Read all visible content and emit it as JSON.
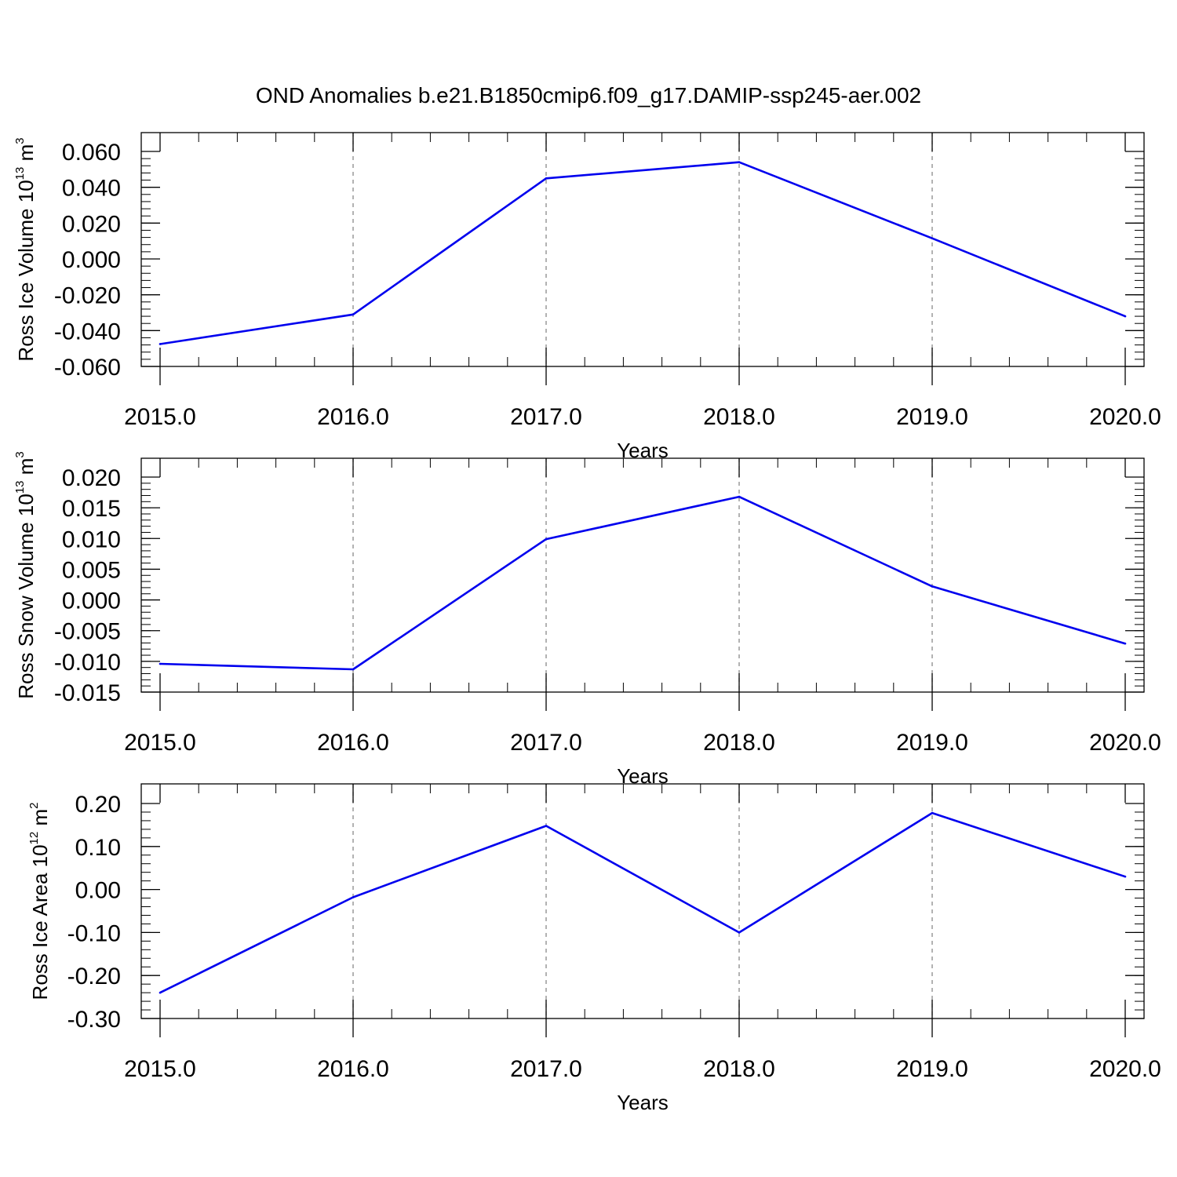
{
  "title": "OND Anomalies b.e21.B1850cmip6.f09_g17.DAMIP-ssp245-aer.002",
  "line_color": "#0000ee",
  "chart_data": [
    {
      "type": "line",
      "ylabel": {
        "text": "Ross Ice Volume 10",
        "sup": "13",
        "unit": " m",
        "unit_sup": "3"
      },
      "xlabel": "Years",
      "x": [
        2015,
        2016,
        2017,
        2018,
        2019,
        2020
      ],
      "values": [
        -0.0475,
        -0.031,
        0.045,
        0.054,
        0.0115,
        -0.032
      ],
      "xlim": [
        2015,
        2020
      ],
      "ylim": [
        -0.06,
        0.06
      ],
      "xticks": [
        "2015.0",
        "2016.0",
        "2017.0",
        "2018.0",
        "2019.0",
        "2020.0"
      ],
      "xtick_values": [
        2015,
        2016,
        2017,
        2018,
        2019,
        2020
      ],
      "yticks": [
        "0.060",
        "0.040",
        "0.020",
        "0.000",
        "-0.020",
        "-0.040",
        "-0.060"
      ],
      "ytick_values": [
        0.06,
        0.04,
        0.02,
        0,
        -0.02,
        -0.04,
        -0.06
      ],
      "grid": "vertical dashed at major x ticks"
    },
    {
      "type": "line",
      "ylabel": {
        "text": "Ross Snow Volume 10",
        "sup": "13",
        "unit": " m",
        "unit_sup": "3"
      },
      "xlabel": "Years",
      "x": [
        2015,
        2016,
        2017,
        2018,
        2019,
        2020
      ],
      "values": [
        -0.0104,
        -0.0113,
        0.0099,
        0.0168,
        0.0022,
        -0.0071
      ],
      "xlim": [
        2015,
        2020
      ],
      "ylim": [
        -0.015,
        0.02
      ],
      "xticks": [
        "2015.0",
        "2016.0",
        "2017.0",
        "2018.0",
        "2019.0",
        "2020.0"
      ],
      "xtick_values": [
        2015,
        2016,
        2017,
        2018,
        2019,
        2020
      ],
      "yticks": [
        "0.020",
        "0.015",
        "0.010",
        "0.005",
        "0.000",
        "-0.005",
        "-0.010",
        "-0.015"
      ],
      "ytick_values": [
        0.02,
        0.015,
        0.01,
        0.005,
        0,
        -0.005,
        -0.01,
        -0.015
      ],
      "grid": "vertical dashed at major x ticks"
    },
    {
      "type": "line",
      "ylabel": {
        "text": "Ross Ice Area 10",
        "sup": "12",
        "unit": " m",
        "unit_sup": "2"
      },
      "xlabel": "Years",
      "x": [
        2015,
        2016,
        2017,
        2018,
        2019,
        2020
      ],
      "values": [
        -0.24,
        -0.018,
        0.148,
        -0.1,
        0.178,
        0.03
      ],
      "xlim": [
        2015,
        2020
      ],
      "ylim": [
        -0.3,
        0.2
      ],
      "xticks": [
        "2015.0",
        "2016.0",
        "2017.0",
        "2018.0",
        "2019.0",
        "2020.0"
      ],
      "xtick_values": [
        2015,
        2016,
        2017,
        2018,
        2019,
        2020
      ],
      "yticks": [
        "0.20",
        "0.10",
        "0.00",
        "-0.10",
        "-0.20",
        "-0.30"
      ],
      "ytick_values": [
        0.2,
        0.1,
        0,
        -0.1,
        -0.2,
        -0.3
      ],
      "grid": "vertical dashed at major x ticks"
    }
  ]
}
